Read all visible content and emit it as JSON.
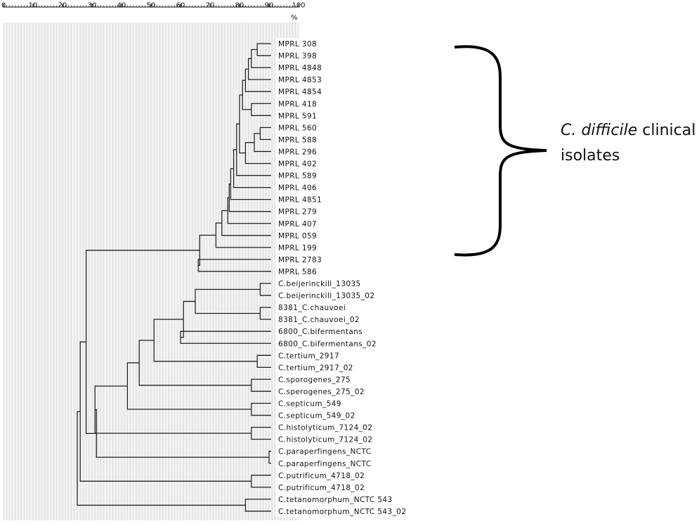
{
  "scale": {
    "ticks": [
      "0",
      "10",
      "20",
      "30",
      "40",
      "50",
      "60",
      "70",
      "80",
      "90",
      "100"
    ],
    "unit": "%"
  },
  "annotation": {
    "species": "C. difficile",
    "word_clinical": " clinical",
    "word_isolates": "isolates"
  },
  "leaves": [
    "MPRL 308",
    "MPRL 398",
    "MPRL 4848",
    "MPRL 4853",
    "MPRL 4854",
    "MPRL 418",
    "MPRL 591",
    "MPRL 560",
    "MPRL 588",
    "MPRL 296",
    "MPRL 402",
    "MPRL 589",
    "MPRL 406",
    "MPRL 4851",
    "MPRL 279",
    "MPRL 407",
    "MPRL 059",
    "MPRL 199",
    "MPRL 2783",
    "MPRL 586",
    "C.beijerinckill_13035",
    "C.beijerinckill_13035_02",
    "8381_C.chauvoei",
    "8381_C.chauvoei_02",
    "6800_C.bifermentans",
    "6800_C.bifermentans_02",
    "C.tertium_2917",
    "C.tertium_2917_02",
    "C.sporogenes_275",
    "C.sperogenes_275_02",
    "C.septicum_549",
    "C.septicum_549_02",
    "C.histolyticum_7124_02",
    "C.histolyticum_7124_02",
    "C.paraperfingens_NCTC",
    "C.paraperfingens_NCTC",
    "C.putrificum_4718_02",
    "C.putrificum_4718_02",
    "C.tetanomorphum_NCTC 543",
    "C.tetanomorphum_NCTC 543_02"
  ],
  "merges": [
    {
      "a": 0,
      "b": 1,
      "sim": 86
    },
    {
      "a": "m0",
      "b": 2,
      "sim": 84
    },
    {
      "a": "m1",
      "b": 3,
      "sim": 83
    },
    {
      "a": "m2",
      "b": 4,
      "sim": 82
    },
    {
      "a": 5,
      "b": 6,
      "sim": 84
    },
    {
      "a": "m3",
      "b": "m4",
      "sim": 81
    },
    {
      "a": 7,
      "b": 8,
      "sim": 87
    },
    {
      "a": "m6",
      "b": 9,
      "sim": 85
    },
    {
      "a": "m7",
      "b": 10,
      "sim": 82
    },
    {
      "a": "m5",
      "b": "m8",
      "sim": 80
    },
    {
      "a": "m9",
      "b": 11,
      "sim": 79
    },
    {
      "a": "m10",
      "b": 12,
      "sim": 78
    },
    {
      "a": "m11",
      "b": 13,
      "sim": 77
    },
    {
      "a": "m12",
      "b": 14,
      "sim": 76.5
    },
    {
      "a": "m13",
      "b": 15,
      "sim": 76
    },
    {
      "a": "m14",
      "b": 16,
      "sim": 74
    },
    {
      "a": "m15",
      "b": 17,
      "sim": 72
    },
    {
      "a": 18,
      "b": 19,
      "sim": 66
    },
    {
      "a": "m16",
      "b": "m17",
      "sim": 66.5
    },
    {
      "a": 20,
      "b": 21,
      "sim": 87
    },
    {
      "a": 22,
      "b": 23,
      "sim": 87
    },
    {
      "a": "m19",
      "b": "m20",
      "sim": 65
    },
    {
      "a": 24,
      "b": 25,
      "sim": 60
    },
    {
      "a": "m21",
      "b": "m22",
      "sim": 61
    },
    {
      "a": 26,
      "b": 27,
      "sim": 86
    },
    {
      "a": "m23",
      "b": "m24",
      "sim": 51
    },
    {
      "a": 28,
      "b": 29,
      "sim": 84
    },
    {
      "a": "m25",
      "b": "m26",
      "sim": 46
    },
    {
      "a": 30,
      "b": 31,
      "sim": 84
    },
    {
      "a": "m27",
      "b": "m28",
      "sim": 42
    },
    {
      "a": 32,
      "b": 33,
      "sim": 84
    },
    {
      "a": "m29",
      "b": "m30",
      "sim": 31
    },
    {
      "a": 34,
      "b": 35,
      "sim": 90
    },
    {
      "a": "m31",
      "b": "m32",
      "sim": 31.5
    },
    {
      "a": "m18",
      "b": "m33",
      "sim": 28
    },
    {
      "a": 36,
      "b": 37,
      "sim": 84
    },
    {
      "a": "m34",
      "b": "m35",
      "sim": 26
    },
    {
      "a": 38,
      "b": 39,
      "sim": 82
    },
    {
      "a": "m36",
      "b": "m37",
      "sim": 25
    }
  ]
}
